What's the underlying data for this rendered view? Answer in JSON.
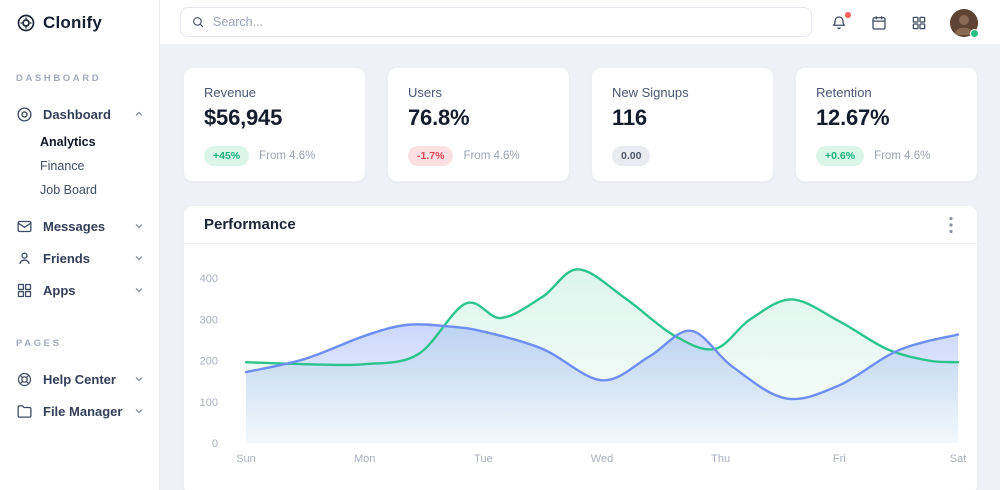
{
  "brand": {
    "name": "Clonify"
  },
  "topbar": {
    "search_placeholder": "Search...",
    "has_notification_dot": true,
    "avatar_status": "online"
  },
  "sidebar": {
    "sections": [
      {
        "label": "DASHBOARD",
        "items": [
          {
            "label": "Dashboard",
            "icon": "clonify-mark-icon",
            "expanded": true,
            "children": [
              {
                "label": "Analytics",
                "active": true
              },
              {
                "label": "Finance",
                "active": false
              },
              {
                "label": "Job Board",
                "active": false
              }
            ]
          },
          {
            "label": "Messages",
            "icon": "mail-icon",
            "expanded": false
          },
          {
            "label": "Friends",
            "icon": "user-icon",
            "expanded": false
          },
          {
            "label": "Apps",
            "icon": "grid-icon",
            "expanded": false
          }
        ]
      },
      {
        "label": "PAGES",
        "items": [
          {
            "label": "Help Center",
            "icon": "lifebuoy-icon",
            "expanded": false
          },
          {
            "label": "File Manager",
            "icon": "folder-icon",
            "expanded": false
          }
        ]
      }
    ]
  },
  "stats": [
    {
      "title": "Revenue",
      "value": "$56,945",
      "badge": "+45%",
      "badge_type": "positive",
      "note": "From 4.6%"
    },
    {
      "title": "Users",
      "value": "76.8%",
      "badge": "-1.7%",
      "badge_type": "negative",
      "note": "From 4.6%"
    },
    {
      "title": "New Signups",
      "value": "116",
      "badge": "0.00",
      "badge_type": "neutral",
      "note": ""
    },
    {
      "title": "Retention",
      "value": "12.67%",
      "badge": "+0.6%",
      "badge_type": "positive",
      "note": "From 4.6%"
    }
  ],
  "performance_card": {
    "title": "Performance",
    "menu_icon": "kebab-menu-icon"
  },
  "chart_data": {
    "type": "area",
    "title": "Performance",
    "categories": [
      "Sun",
      "Mon",
      "Tue",
      "Wed",
      "Thu",
      "Fri",
      "Sat"
    ],
    "y_ticks": [
      0,
      100,
      200,
      300,
      400
    ],
    "ylim": [
      0,
      440
    ],
    "grid": false,
    "legend": "none",
    "series": [
      {
        "name": "series-green",
        "color": "#2bc48c",
        "area_opacity": [
          0.16,
          0.03
        ],
        "points": [
          [
            0,
            196
          ],
          [
            0.5,
            191
          ],
          [
            1,
            191
          ],
          [
            1.45,
            215
          ],
          [
            1.85,
            338
          ],
          [
            2.15,
            303
          ],
          [
            2.5,
            355
          ],
          [
            2.8,
            421
          ],
          [
            3.2,
            350
          ],
          [
            3.6,
            262
          ],
          [
            3.95,
            228
          ],
          [
            4.25,
            300
          ],
          [
            4.6,
            348
          ],
          [
            5.0,
            295
          ],
          [
            5.4,
            228
          ],
          [
            5.75,
            200
          ],
          [
            6,
            196
          ]
        ]
      },
      {
        "name": "series-blue",
        "color": "#6e8ef5",
        "area_opacity": [
          0.36,
          0.04
        ],
        "points": [
          [
            0,
            172
          ],
          [
            0.5,
            204
          ],
          [
            1,
            260
          ],
          [
            1.35,
            286
          ],
          [
            1.7,
            283
          ],
          [
            2,
            270
          ],
          [
            2.5,
            228
          ],
          [
            3,
            152
          ],
          [
            3.4,
            210
          ],
          [
            3.75,
            272
          ],
          [
            4.1,
            185
          ],
          [
            4.55,
            108
          ],
          [
            5,
            140
          ],
          [
            5.5,
            225
          ],
          [
            6,
            263
          ]
        ]
      }
    ]
  },
  "colors": {
    "background": "#eff1f6",
    "surface": "#ffffff",
    "border": "#e9ecf1",
    "accent_green": "#2bc48c",
    "accent_blue": "#6e8ef5",
    "badge_positive_bg": "#d9f6e9",
    "badge_positive_text": "#12b076",
    "badge_negative_bg": "#fbe0e3",
    "badge_negative_text": "#e04556",
    "badge_neutral_bg": "#e9ebf1",
    "badge_neutral_text": "#4c566b",
    "notification_dot": "#f25c5c",
    "online_dot": "#27c281"
  }
}
